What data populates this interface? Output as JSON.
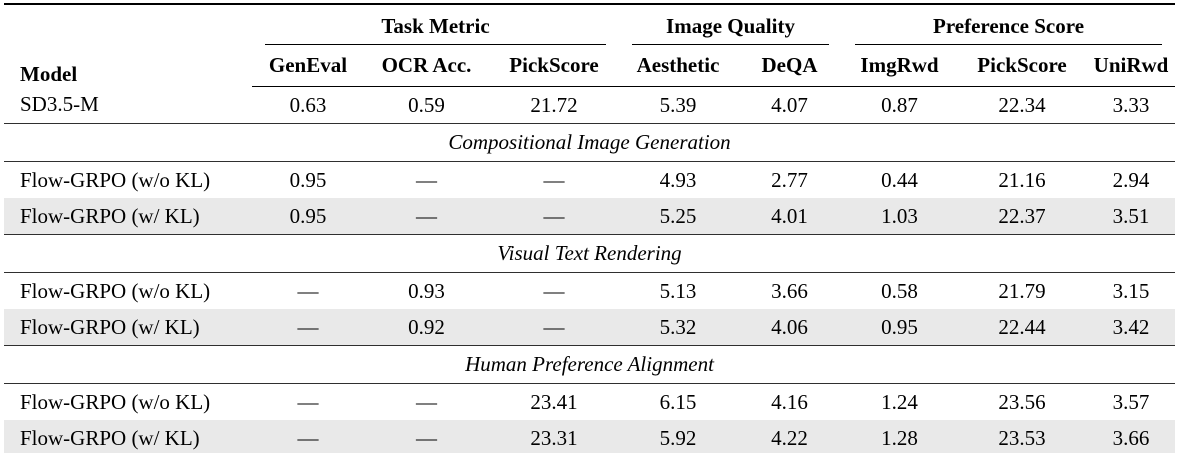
{
  "table": {
    "model_header": "Model",
    "col_groups": [
      {
        "label": "Task Metric",
        "span": 3
      },
      {
        "label": "Image Quality",
        "span": 2
      },
      {
        "label": "Preference Score",
        "span": 3
      }
    ],
    "sub_headers": [
      "GenEval",
      "OCR Acc.",
      "PickScore",
      "Aesthetic",
      "DeQA",
      "ImgRwd",
      "PickScore",
      "UniRwd"
    ],
    "baseline_row": {
      "model": "SD3.5-M",
      "values": [
        "0.63",
        "0.59",
        "21.72",
        "5.39",
        "4.07",
        "0.87",
        "22.34",
        "3.33"
      ]
    },
    "sections": [
      {
        "title": "Compositional Image Generation",
        "rows": [
          {
            "model": "Flow-GRPO (w/o KL)",
            "values": [
              "0.95",
              "—",
              "—",
              "4.93",
              "2.77",
              "0.44",
              "21.16",
              "2.94"
            ]
          },
          {
            "model": "Flow-GRPO (w/ KL)",
            "values": [
              "0.95",
              "—",
              "—",
              "5.25",
              "4.01",
              "1.03",
              "22.37",
              "3.51"
            ]
          }
        ]
      },
      {
        "title": "Visual Text Rendering",
        "rows": [
          {
            "model": "Flow-GRPO (w/o KL)",
            "values": [
              "—",
              "0.93",
              "—",
              "5.13",
              "3.66",
              "0.58",
              "21.79",
              "3.15"
            ]
          },
          {
            "model": "Flow-GRPO (w/ KL)",
            "values": [
              "—",
              "0.92",
              "—",
              "5.32",
              "4.06",
              "0.95",
              "22.44",
              "3.42"
            ]
          }
        ]
      },
      {
        "title": "Human Preference Alignment",
        "rows": [
          {
            "model": "Flow-GRPO (w/o KL)",
            "values": [
              "—",
              "—",
              "23.41",
              "6.15",
              "4.16",
              "1.24",
              "23.56",
              "3.57"
            ]
          },
          {
            "model": "Flow-GRPO (w/ KL)",
            "values": [
              "—",
              "—",
              "23.31",
              "5.92",
              "4.22",
              "1.28",
              "23.53",
              "3.66"
            ]
          }
        ]
      }
    ],
    "colors": {
      "row_shade": "#e9e9e9",
      "rule_heavy": "#000000",
      "rule_light": "#2f2f2f"
    }
  }
}
